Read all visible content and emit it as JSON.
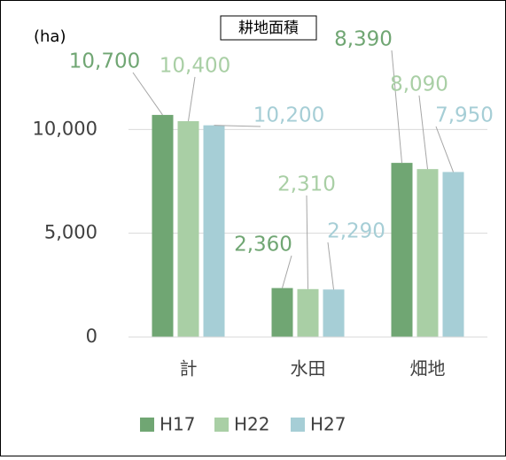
{
  "chart_data": {
    "type": "bar",
    "title": "耕地面積",
    "y_label": "(ha)",
    "categories": [
      "計",
      "水田",
      "畑地"
    ],
    "series": [
      {
        "name": "H17",
        "color": "#70a673",
        "values": [
          10700,
          2360,
          8390
        ],
        "value_labels": [
          "10,700",
          "2,360",
          "8,390"
        ]
      },
      {
        "name": "H22",
        "color": "#a9cfa5",
        "values": [
          10400,
          2310,
          8090
        ],
        "value_labels": [
          "10,400",
          "2,310",
          "8,090"
        ]
      },
      {
        "name": "H27",
        "color": "#a6ced6",
        "values": [
          10200,
          2290,
          7950
        ],
        "value_labels": [
          "10,200",
          "2,290",
          "7,950"
        ]
      }
    ],
    "ylim": [
      0,
      15000
    ],
    "yticks": [
      0,
      {
        "value": 5000,
        "label": "5,000"
      },
      {
        "value": 10000,
        "label": "10,000"
      }
    ],
    "grid": true,
    "legend": "bottom"
  }
}
